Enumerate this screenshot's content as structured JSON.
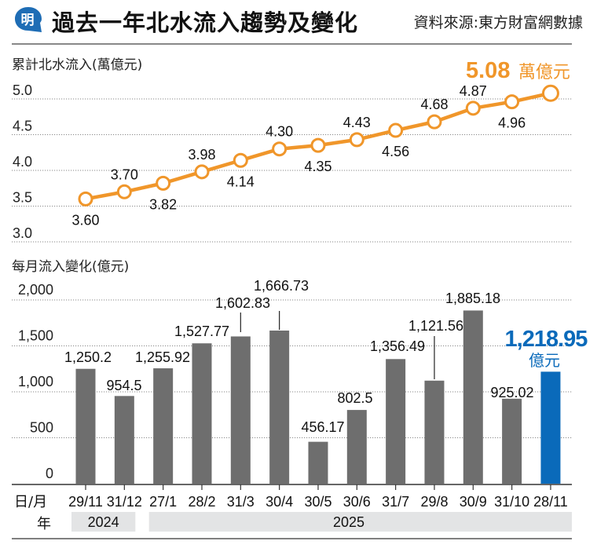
{
  "header": {
    "logo_char": "明",
    "title": "過去一年北水流入趨勢及變化",
    "source": "資料來源:東方財富網數據"
  },
  "colors": {
    "orange": "#F0962A",
    "bar_gray": "#6E6E6E",
    "highlight_blue": "#0A6ABA",
    "logo_blue": "#1E6DB5",
    "year_band": "#E3E4E5"
  },
  "chart_data": [
    {
      "type": "line",
      "title": "累計北水流入(萬億元)",
      "xlabel": "",
      "ylabel": "萬億元",
      "ylim": [
        3.0,
        5.0
      ],
      "yticks": [
        "5.0",
        "4.5",
        "4.0",
        "3.5",
        "3.0"
      ],
      "grid": true,
      "categories": [
        "29/11",
        "31/12",
        "27/1",
        "28/2",
        "31/3",
        "30/4",
        "30/5",
        "30/6",
        "31/7",
        "29/8",
        "30/9",
        "31/10",
        "28/11"
      ],
      "values": [
        3.6,
        3.7,
        3.82,
        3.98,
        4.14,
        4.3,
        4.35,
        4.43,
        4.56,
        4.68,
        4.87,
        4.96,
        5.08
      ],
      "labels": [
        "3.60",
        "3.70",
        "3.82",
        "3.98",
        "4.14",
        "4.30",
        "4.35",
        "4.43",
        "4.56",
        "4.68",
        "4.87",
        "4.96",
        ""
      ],
      "label_positions": [
        "below",
        "above",
        "below",
        "above",
        "below",
        "above",
        "below",
        "above",
        "below",
        "above",
        "above",
        "below",
        "none"
      ],
      "highlight": {
        "value": "5.08",
        "unit": "萬億元"
      }
    },
    {
      "type": "bar",
      "title": "每月流入變化(億元)",
      "xlabel": "日/月",
      "ylabel": "億元",
      "ylim": [
        0,
        2000
      ],
      "yticks": [
        "2,000",
        "1,500",
        "1,000",
        "500",
        "0"
      ],
      "grid": true,
      "categories": [
        "29/11",
        "31/12",
        "27/1",
        "28/2",
        "31/3",
        "30/4",
        "30/5",
        "30/6",
        "31/7",
        "29/8",
        "30/9",
        "31/10",
        "28/11"
      ],
      "values": [
        1250.2,
        954.5,
        1255.92,
        1527.77,
        1602.83,
        1666.73,
        456.17,
        802.5,
        1356.49,
        1121.56,
        1885.18,
        925.02,
        1218.95
      ],
      "labels": [
        "1,250.2",
        "954.5",
        "1,255.92",
        "1,527.77",
        "1,602.83",
        "1,666.73",
        "456.17",
        "802.5",
        "1,356.49",
        "1,121.56",
        "1,885.18",
        "925.02",
        ""
      ],
      "highlight": {
        "index": 12,
        "value": "1,218.95",
        "unit": "億元"
      },
      "year_row": {
        "label": "年",
        "groups": [
          {
            "year": "2024",
            "span": [
              0,
              1
            ]
          },
          {
            "year": "2025",
            "span": [
              2,
              12
            ]
          }
        ]
      }
    }
  ]
}
